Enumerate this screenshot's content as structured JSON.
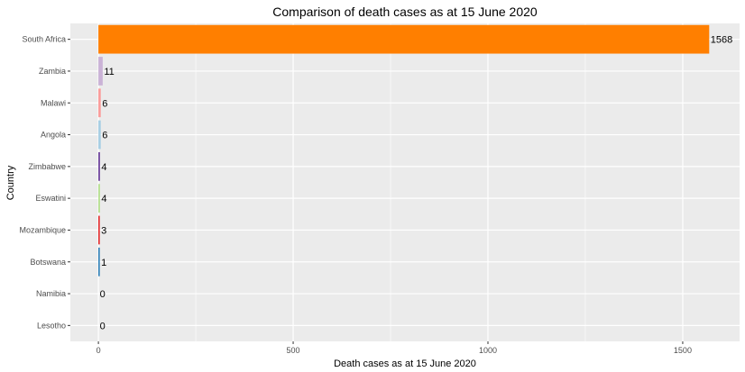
{
  "chart_data": {
    "type": "bar",
    "orientation": "horizontal",
    "title": "Comparison of death cases as at 15 June 2020",
    "xlabel": "Death cases as at 15 June 2020",
    "ylabel": "Country",
    "categories": [
      "South Africa",
      "Zambia",
      "Malawi",
      "Angola",
      "Zimbabwe",
      "Eswatini",
      "Mozambique",
      "Botswana",
      "Namibia",
      "Lesotho"
    ],
    "values": [
      1568,
      11,
      6,
      6,
      4,
      4,
      3,
      1,
      0,
      0
    ],
    "value_labels": [
      "1568",
      "11",
      "6",
      "6",
      "4",
      "4",
      "3",
      "1",
      "0",
      "0"
    ],
    "colors": [
      "#FF7F00",
      "#CAB2D6",
      "#FB9A99",
      "#A6CEE3",
      "#6A3D9A",
      "#B2DF8A",
      "#E31A1C",
      "#1F78B4",
      "#FDBF6F",
      "#33A02C"
    ],
    "xticks": [
      0,
      500,
      1000,
      1500
    ],
    "xtick_labels": [
      "0",
      "500",
      "1000",
      "1500"
    ],
    "xlim": [
      -72,
      1646
    ],
    "grid": true,
    "legend": "none",
    "panel_background": "#EBEBEB",
    "grid_color": "#FFFFFF"
  }
}
